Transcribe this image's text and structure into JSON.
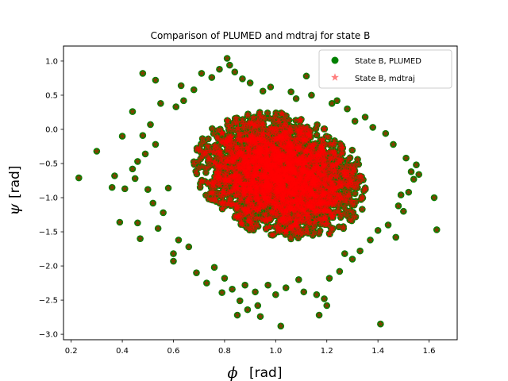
{
  "chart_data": {
    "type": "scatter",
    "title": "Comparison of PLUMED and mdtraj for state B",
    "xlabel": {
      "symbol": "ϕ",
      "unit": "[rad]"
    },
    "ylabel": {
      "symbol": "ψ",
      "unit": "[rad]"
    },
    "xlim": [
      0.17,
      1.71
    ],
    "ylim": [
      -3.08,
      1.22
    ],
    "xticks": [
      0.2,
      0.4,
      0.6,
      0.8,
      1.0,
      1.2,
      1.4,
      1.6
    ],
    "xtick_labels": [
      "0.2",
      "0.4",
      "0.6",
      "0.8",
      "1.0",
      "1.2",
      "1.4",
      "1.6"
    ],
    "yticks": [
      -3.0,
      -2.5,
      -2.0,
      -1.5,
      -1.0,
      -0.5,
      0.0,
      0.5,
      1.0
    ],
    "ytick_labels": [
      "−3.0",
      "−2.5",
      "−2.0",
      "−1.5",
      "−1.0",
      "−0.5",
      "0.0",
      "0.5",
      "1.0"
    ],
    "legend_position": "top-right",
    "cloud": {
      "center": [
        1.02,
        -0.68
      ],
      "sd": [
        0.16,
        0.44
      ],
      "rho": -0.2,
      "core_count": 2600
    },
    "series": [
      {
        "name": "State B, PLUMED",
        "marker": "circle",
        "color": "#008000",
        "points": [
          [
            0.23,
            -0.71
          ],
          [
            0.3,
            -0.32
          ],
          [
            0.36,
            -0.85
          ],
          [
            0.37,
            -0.68
          ],
          [
            0.39,
            -1.36
          ],
          [
            0.4,
            -0.1
          ],
          [
            0.41,
            -0.87
          ],
          [
            0.44,
            0.26
          ],
          [
            0.44,
            -0.58
          ],
          [
            0.45,
            -0.72
          ],
          [
            0.46,
            -0.47
          ],
          [
            0.46,
            -1.37
          ],
          [
            0.47,
            -1.6
          ],
          [
            0.48,
            0.82
          ],
          [
            0.48,
            -0.09
          ],
          [
            0.49,
            -0.36
          ],
          [
            0.5,
            -0.88
          ],
          [
            0.51,
            0.07
          ],
          [
            0.52,
            -1.08
          ],
          [
            0.53,
            0.72
          ],
          [
            0.53,
            -0.22
          ],
          [
            0.54,
            -1.45
          ],
          [
            0.55,
            0.38
          ],
          [
            0.56,
            -1.22
          ],
          [
            0.58,
            -0.86
          ],
          [
            0.6,
            -1.82
          ],
          [
            0.6,
            -1.93
          ],
          [
            0.61,
            0.33
          ],
          [
            0.62,
            -1.62
          ],
          [
            0.63,
            0.64
          ],
          [
            0.64,
            0.42
          ],
          [
            0.66,
            -1.72
          ],
          [
            0.68,
            0.58
          ],
          [
            0.69,
            -2.1
          ],
          [
            0.71,
            0.82
          ],
          [
            0.73,
            -2.25
          ],
          [
            0.75,
            0.76
          ],
          [
            0.76,
            -2.02
          ],
          [
            0.78,
            0.88
          ],
          [
            0.79,
            -2.39
          ],
          [
            0.8,
            -2.18
          ],
          [
            0.81,
            1.04
          ],
          [
            0.82,
            0.94
          ],
          [
            0.83,
            -2.34
          ],
          [
            0.84,
            0.84
          ],
          [
            0.85,
            -2.72
          ],
          [
            0.86,
            -2.51
          ],
          [
            0.87,
            0.74
          ],
          [
            0.88,
            -2.28
          ],
          [
            0.89,
            -2.64
          ],
          [
            0.9,
            0.68
          ],
          [
            0.92,
            -2.38
          ],
          [
            0.93,
            -2.58
          ],
          [
            0.94,
            -2.74
          ],
          [
            0.95,
            0.56
          ],
          [
            0.97,
            -2.28
          ],
          [
            0.98,
            0.62
          ],
          [
            1.0,
            -2.42
          ],
          [
            1.02,
            -2.88
          ],
          [
            1.04,
            -2.32
          ],
          [
            1.06,
            0.55
          ],
          [
            1.08,
            0.45
          ],
          [
            1.09,
            -2.2
          ],
          [
            1.11,
            -2.38
          ],
          [
            1.12,
            0.78
          ],
          [
            1.14,
            0.5
          ],
          [
            1.16,
            -2.42
          ],
          [
            1.17,
            -2.72
          ],
          [
            1.19,
            -2.48
          ],
          [
            1.2,
            -2.58
          ],
          [
            1.21,
            -2.18
          ],
          [
            1.22,
            0.38
          ],
          [
            1.24,
            0.42
          ],
          [
            1.25,
            -2.08
          ],
          [
            1.27,
            -1.82
          ],
          [
            1.28,
            0.3
          ],
          [
            1.3,
            -1.9
          ],
          [
            1.31,
            0.12
          ],
          [
            1.33,
            -1.78
          ],
          [
            1.35,
            0.18
          ],
          [
            1.37,
            -1.62
          ],
          [
            1.38,
            0.03
          ],
          [
            1.4,
            -1.48
          ],
          [
            1.41,
            -2.85
          ],
          [
            1.43,
            -0.06
          ],
          [
            1.44,
            -1.4
          ],
          [
            1.46,
            -0.22
          ],
          [
            1.47,
            -1.58
          ],
          [
            1.48,
            -1.12
          ],
          [
            1.49,
            -0.96
          ],
          [
            1.5,
            -1.2
          ],
          [
            1.51,
            -0.42
          ],
          [
            1.52,
            -0.92
          ],
          [
            1.53,
            -0.62
          ],
          [
            1.54,
            -0.73
          ],
          [
            1.55,
            -0.52
          ],
          [
            1.56,
            -0.66
          ],
          [
            1.62,
            -1.0
          ],
          [
            1.63,
            -1.47
          ]
        ]
      },
      {
        "name": "State B, mdtraj",
        "marker": "star",
        "color": "#ff0000",
        "points": "same as State B, PLUMED"
      }
    ]
  }
}
